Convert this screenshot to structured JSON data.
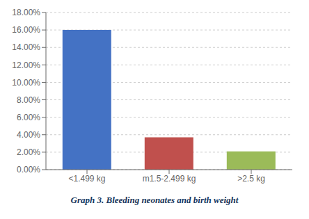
{
  "chart_data": {
    "type": "bar",
    "title": "Graph 3. Bleeding neonates and birth weight",
    "categories": [
      "<1.499 kg",
      "m1.5-2.499 kg",
      ">2.5 kg"
    ],
    "values": [
      0.16,
      0.037,
      0.021
    ],
    "colors": [
      "#4472C4",
      "#C0504D",
      "#9BBB59"
    ],
    "ylim": [
      0,
      0.18
    ],
    "yticks": [
      {
        "value": 0.0,
        "label": "0.00%"
      },
      {
        "value": 0.02,
        "label": "2.00%"
      },
      {
        "value": 0.04,
        "label": "4.00%"
      },
      {
        "value": 0.06,
        "label": "6.00%"
      },
      {
        "value": 0.08,
        "label": "8.00%"
      },
      {
        "value": 0.1,
        "label": "10.00%"
      },
      {
        "value": 0.12,
        "label": "12.00%"
      },
      {
        "value": 0.14,
        "label": "14.00%"
      },
      {
        "value": 0.16,
        "label": "16.00%"
      },
      {
        "value": 0.18,
        "label": "18.00%"
      }
    ],
    "grid": true
  }
}
